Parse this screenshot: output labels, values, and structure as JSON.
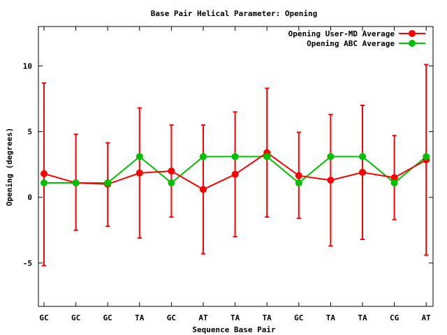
{
  "chart_data": {
    "type": "line",
    "title": "Base Pair Helical Parameter: Opening",
    "xlabel": "Sequence Base Pair",
    "ylabel": "Opening (degrees)",
    "categories": [
      "GC",
      "GC",
      "GC",
      "TA",
      "GC",
      "AT",
      "TA",
      "TA",
      "GC",
      "TA",
      "TA",
      "CG",
      "AT"
    ],
    "ylim": [
      -8.3,
      13.0
    ],
    "yticks": [
      -5,
      0,
      5,
      10
    ],
    "ytick_labels": [
      "-5",
      "0",
      "5",
      "10"
    ],
    "grid": false,
    "legend_position": "top-right",
    "series": [
      {
        "name": "Opening User-MD Average",
        "color": "#ff0000",
        "marker": "circle",
        "values": [
          1.8,
          1.1,
          1.0,
          1.85,
          2.0,
          0.6,
          1.75,
          3.4,
          1.65,
          1.3,
          1.9,
          1.5,
          2.85
        ],
        "error_low": [
          -5.2,
          -2.5,
          -2.2,
          -3.1,
          -1.5,
          -4.3,
          -3.0,
          -1.5,
          -1.6,
          -3.7,
          -3.2,
          -1.7,
          -4.4
        ],
        "error_high": [
          8.7,
          4.8,
          4.15,
          6.8,
          5.5,
          5.5,
          6.5,
          8.3,
          4.95,
          6.3,
          7.0,
          4.7,
          10.1
        ]
      },
      {
        "name": "Opening ABC Average",
        "color": "#00c000",
        "marker": "circle",
        "values": [
          1.1,
          1.1,
          1.1,
          3.1,
          1.1,
          3.1,
          3.1,
          3.1,
          1.1,
          3.1,
          3.1,
          1.1,
          3.1
        ]
      }
    ]
  }
}
